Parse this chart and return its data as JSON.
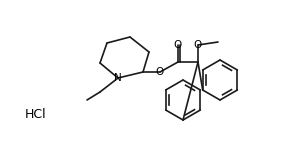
{
  "figsize": [
    2.82,
    1.51
  ],
  "dpi": 100,
  "background": "#ffffff",
  "line_color": "#1a1a1a",
  "lw": 1.2,
  "hcl_text": "HCl",
  "methoxy_text": "O",
  "nitrogen_text": "N",
  "oxygen_ester1": "O",
  "oxygen_ester2": "O",
  "carbonyl_o": "O"
}
